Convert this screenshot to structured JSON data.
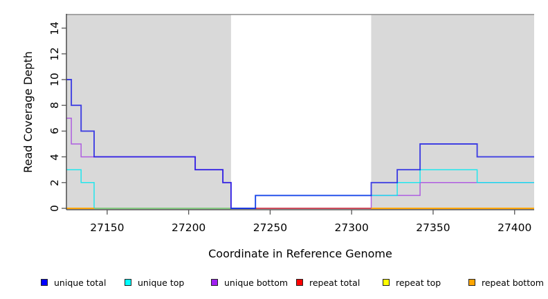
{
  "figure_description": "Step-line plot of read coverage depth across a reference genome region, with gray shaded mappable regions and a white gap",
  "chart_data": {
    "type": "line",
    "subtype": "step",
    "title": "",
    "xlabel": "Coordinate in Reference Genome",
    "ylabel": "Read Coverage Depth",
    "xlim": [
      27125,
      27412
    ],
    "ylim": [
      0,
      15
    ],
    "grid": false,
    "legend_position": "bottom",
    "x_ticks": [
      27150,
      27200,
      27250,
      27300,
      27350,
      27400
    ],
    "y_ticks": [
      0,
      2,
      4,
      6,
      8,
      10,
      12,
      14
    ],
    "shaded_regions": [
      {
        "from": 27125,
        "to": 27226,
        "color": "#D9D9D9"
      },
      {
        "from": 27312,
        "to": 27412,
        "color": "#D9D9D9"
      }
    ],
    "top_boundary": {
      "value": 15,
      "color": "#8C8C8C"
    },
    "series": [
      {
        "name": "unique total",
        "color": "#0A0AE6",
        "opacity": 0.74,
        "width": 1.9,
        "points": [
          [
            27125,
            10
          ],
          [
            27128,
            8
          ],
          [
            27134,
            6
          ],
          [
            27142,
            4
          ],
          [
            27204,
            3
          ],
          [
            27221,
            2
          ],
          [
            27226,
            0
          ],
          [
            27241,
            1
          ],
          [
            27312,
            2
          ],
          [
            27328,
            3
          ],
          [
            27342,
            5
          ],
          [
            27377,
            4
          ],
          [
            27412,
            4
          ]
        ]
      },
      {
        "name": "unique top",
        "color": "#00E8F0",
        "opacity": 0.85,
        "width": 1.5,
        "points": [
          [
            27125,
            3
          ],
          [
            27134,
            2
          ],
          [
            27142,
            0
          ],
          [
            27241,
            1
          ],
          [
            27328,
            2
          ],
          [
            27342,
            3
          ],
          [
            27377,
            2
          ],
          [
            27412,
            2
          ]
        ]
      },
      {
        "name": "unique bottom",
        "color": "#A94FE0",
        "opacity": 0.9,
        "width": 1.5,
        "points": [
          [
            27125,
            7
          ],
          [
            27128,
            5
          ],
          [
            27134,
            4
          ],
          [
            27204,
            3
          ],
          [
            27221,
            2
          ],
          [
            27226,
            0
          ],
          [
            27312,
            1
          ],
          [
            27342,
            2
          ],
          [
            27412,
            2
          ]
        ]
      },
      {
        "name": "repeat total",
        "color": "#FF0000",
        "opacity": 1,
        "width": 1.4,
        "points": [
          [
            27125,
            0
          ],
          [
            27412,
            0
          ]
        ]
      },
      {
        "name": "repeat top",
        "color": "#FFFF00",
        "opacity": 1,
        "width": 1.4,
        "points": [
          [
            27125,
            0
          ],
          [
            27412,
            0
          ]
        ]
      },
      {
        "name": "repeat bottom",
        "color": "#FFA500",
        "opacity": 1,
        "width": 1.4,
        "points": [
          [
            27125,
            0
          ],
          [
            27412,
            0
          ]
        ]
      }
    ],
    "baseline_visible_segments": [
      {
        "from": 27125,
        "to": 27142,
        "color": "#FFA500"
      },
      {
        "from": 27142,
        "to": 27226,
        "color": "#82C882"
      },
      {
        "from": 27241,
        "to": 27312,
        "color": "#CC4459"
      },
      {
        "from": 27312,
        "to": 27412,
        "color": "#FFA500"
      }
    ]
  },
  "axes_style": {
    "axis_color": "#333333",
    "tick_color": "#555555"
  },
  "legend": {
    "items": [
      {
        "label": "unique total",
        "color": "#0000FF"
      },
      {
        "label": "unique top",
        "color": "#00FFFF"
      },
      {
        "label": "unique bottom",
        "color": "#A020F0"
      },
      {
        "label": "repeat total",
        "color": "#FF0000"
      },
      {
        "label": "repeat top",
        "color": "#FFFF00"
      },
      {
        "label": "repeat bottom",
        "color": "#FFA500"
      }
    ]
  }
}
